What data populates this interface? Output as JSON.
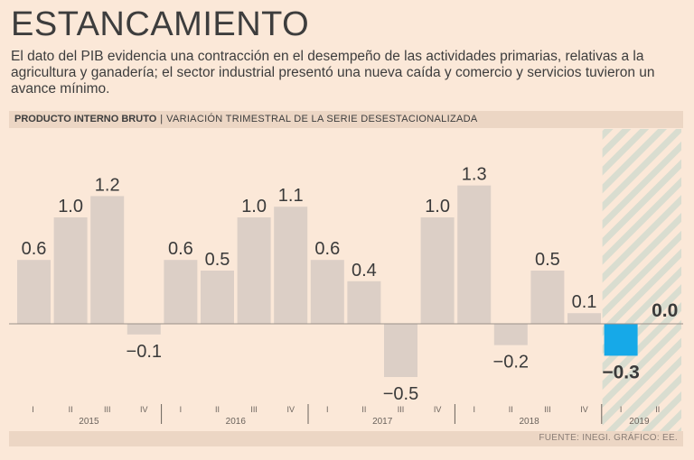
{
  "header": {
    "title": "ESTANCAMIENTO",
    "subtitle": "El dato del PIB evidencia una contracción en el desempeño de las actividades primarias, relativas a la agricultura y ganadería; el sector industrial presentó una nueva caída y comercio y servicios tuvieron un avance mínimo.",
    "chart_label_bold": "PRODUCTO INTERNO BRUTO",
    "chart_label_sep": "|",
    "chart_label_light": "VARIACIÓN TRIMESTRAL DE LA SERIE DESESTACIONALIZADA"
  },
  "footer": {
    "source": "FUENTE: INEGI.  GRÁFICO: EE."
  },
  "colors": {
    "bar": "#dccfc6",
    "highlight": "#16a9e8",
    "hatch": "#d9ddd0",
    "text": "#3a3a3a",
    "axis": "#3a3a3a"
  },
  "chart_data": {
    "type": "bar",
    "title": "PRODUCTO INTERNO BRUTO",
    "subtitle": "VARIACIÓN TRIMESTRAL DE LA SERIE DESESTACIONALIZADA",
    "xlabel": "",
    "ylabel": "",
    "ylim": [
      -0.6,
      1.4
    ],
    "categories": [
      "I",
      "II",
      "III",
      "IV",
      "I",
      "II",
      "III",
      "IV",
      "I",
      "II",
      "III",
      "IV",
      "I",
      "II",
      "III",
      "IV",
      "I",
      "II"
    ],
    "years": [
      {
        "label": "2015",
        "start": 0,
        "count": 4
      },
      {
        "label": "2016",
        "start": 4,
        "count": 4
      },
      {
        "label": "2017",
        "start": 8,
        "count": 4
      },
      {
        "label": "2018",
        "start": 12,
        "count": 4
      },
      {
        "label": "2019",
        "start": 16,
        "count": 2
      }
    ],
    "values": [
      0.6,
      1.0,
      1.2,
      -0.1,
      0.6,
      0.5,
      1.0,
      1.1,
      0.6,
      0.4,
      -0.5,
      1.0,
      1.3,
      -0.2,
      0.5,
      0.1,
      -0.3,
      0.0
    ],
    "value_labels": [
      "0.6",
      "1.0",
      "1.2",
      "−0.1",
      "0.6",
      "0.5",
      "1.0",
      "1.1",
      "0.6",
      "0.4",
      "−0.5",
      "1.0",
      "1.3",
      "−0.2",
      "0.5",
      "0.1",
      "−0.3",
      "0.0"
    ],
    "highlight_indices": [
      16,
      17
    ],
    "hatched_period": "2019",
    "legend": "none",
    "grid": false
  }
}
